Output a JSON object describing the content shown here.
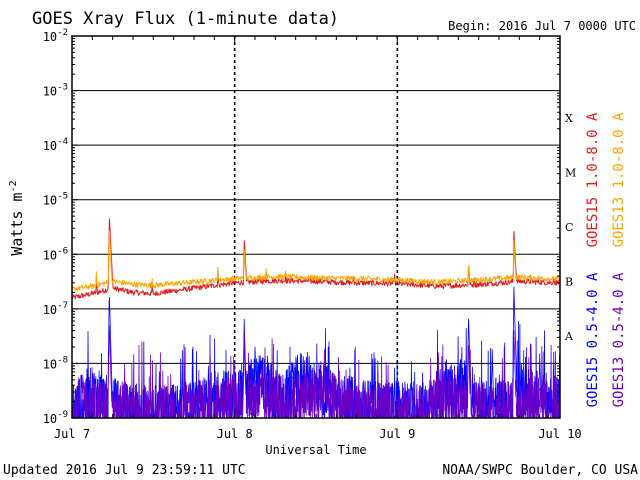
{
  "chart_data": {
    "type": "line",
    "title": "GOES Xray Flux (1-minute data)",
    "begin_text": "Begin:  2016 Jul 7 0000 UTC",
    "xlabel": "Universal Time",
    "ylabel": "Watts m",
    "ylabel_sup": "-2",
    "x_range_hours": [
      0,
      72
    ],
    "x_ticks": [
      {
        "hour": 0,
        "label": "Jul 7"
      },
      {
        "hour": 24,
        "label": "Jul 8"
      },
      {
        "hour": 48,
        "label": "Jul 9"
      },
      {
        "hour": 72,
        "label": "Jul 10"
      }
    ],
    "y_scale": "log",
    "y_range_exp": [
      -9,
      -2
    ],
    "y_ticks": [
      {
        "exp": -2,
        "label": "10",
        "sup": "-2"
      },
      {
        "exp": -3,
        "label": "10",
        "sup": "-3"
      },
      {
        "exp": -4,
        "label": "10",
        "sup": "-4"
      },
      {
        "exp": -5,
        "label": "10",
        "sup": "-5"
      },
      {
        "exp": -6,
        "label": "10",
        "sup": "-6"
      },
      {
        "exp": -7,
        "label": "10",
        "sup": "-7"
      },
      {
        "exp": -8,
        "label": "10",
        "sup": "-8"
      },
      {
        "exp": -9,
        "label": "10",
        "sup": "-9"
      }
    ],
    "flare_classes": [
      {
        "label": "X",
        "exp": -4
      },
      {
        "label": "M",
        "exp": -5
      },
      {
        "label": "C",
        "exp": -6
      },
      {
        "label": "B",
        "exp": -7
      },
      {
        "label": "A",
        "exp": -8
      }
    ],
    "legend": [
      {
        "label": "GOES15 1.0-8.0 A",
        "color": "#e41a1c"
      },
      {
        "label": "GOES13 1.0-8.0 A",
        "color": "#ffa500"
      },
      {
        "label": "GOES15 0.5-4.0 A",
        "color": "#0000ff"
      },
      {
        "label": "GOES13 0.5-4.0 A",
        "color": "#6a00c8"
      }
    ],
    "series": [
      {
        "name": "GOES15 1.0-8.0 A",
        "color": "#e41a1c",
        "baseline": [
          [
            0,
            1.6e-07
          ],
          [
            3,
            1.9e-07
          ],
          [
            6,
            2.4e-07
          ],
          [
            9,
            2e-07
          ],
          [
            12,
            1.9e-07
          ],
          [
            18,
            2.4e-07
          ],
          [
            24,
            3e-07
          ],
          [
            30,
            3.3e-07
          ],
          [
            36,
            3.2e-07
          ],
          [
            42,
            3e-07
          ],
          [
            48,
            2.9e-07
          ],
          [
            54,
            2.6e-07
          ],
          [
            60,
            2.8e-07
          ],
          [
            66,
            3.2e-07
          ],
          [
            72,
            3e-07
          ]
        ],
        "flares": [
          [
            3.6,
            4.2e-07
          ],
          [
            5.5,
            5e-06
          ],
          [
            11.8,
            3.8e-07
          ],
          [
            21.5,
            5.5e-07
          ],
          [
            25.4,
            2.2e-06
          ],
          [
            28.6,
            6e-07
          ],
          [
            31.5,
            5e-07
          ],
          [
            41.5,
            4.4e-07
          ],
          [
            47.6,
            4.3e-07
          ],
          [
            58.5,
            8e-07
          ],
          [
            59.3,
            5e-07
          ],
          [
            65.2,
            2.6e-06
          ],
          [
            71.0,
            4.5e-07
          ]
        ]
      },
      {
        "name": "GOES13 1.0-8.0 A",
        "color": "#ffa500",
        "baseline": [
          [
            0,
            2.3e-07
          ],
          [
            3,
            2.6e-07
          ],
          [
            6,
            3.2e-07
          ],
          [
            9,
            2.8e-07
          ],
          [
            12,
            2.7e-07
          ],
          [
            18,
            3.1e-07
          ],
          [
            24,
            3.6e-07
          ],
          [
            30,
            3.9e-07
          ],
          [
            36,
            3.7e-07
          ],
          [
            42,
            3.6e-07
          ],
          [
            48,
            3.4e-07
          ],
          [
            54,
            3.1e-07
          ],
          [
            60,
            3.4e-07
          ],
          [
            66,
            3.8e-07
          ],
          [
            72,
            3.5e-07
          ]
        ],
        "flares": [
          [
            3.6,
            4.8e-07
          ],
          [
            5.5,
            3e-06
          ],
          [
            11.8,
            4.5e-07
          ],
          [
            21.5,
            6.5e-07
          ],
          [
            25.4,
            1.5e-06
          ],
          [
            28.6,
            6.8e-07
          ],
          [
            31.5,
            5.5e-07
          ],
          [
            58.5,
            8.5e-07
          ],
          [
            65.2,
            1.8e-06
          ]
        ]
      },
      {
        "name": "GOES15 0.5-4.0 A",
        "color": "#0000ff",
        "baseline": [
          [
            0,
            1.5e-09
          ],
          [
            2,
            2.5e-09
          ],
          [
            4,
            3e-09
          ],
          [
            5,
            2e-09
          ],
          [
            8,
            1.5e-09
          ],
          [
            12,
            1.3e-09
          ],
          [
            16,
            1.4e-09
          ],
          [
            19,
            1.7e-09
          ],
          [
            21,
            2.5e-09
          ],
          [
            24,
            2.5e-09
          ],
          [
            26,
            4e-09
          ],
          [
            28,
            5e-09
          ],
          [
            31,
            2e-09
          ],
          [
            34,
            6e-09
          ],
          [
            37,
            3.5e-09
          ],
          [
            40,
            2e-09
          ],
          [
            44,
            1.6e-09
          ],
          [
            48,
            1.6e-09
          ],
          [
            52,
            1.5e-09
          ],
          [
            55,
            3e-09
          ],
          [
            58,
            4e-09
          ],
          [
            60,
            1.5e-09
          ],
          [
            63,
            2e-09
          ],
          [
            64.5,
            1.5e-09
          ],
          [
            66,
            4e-09
          ],
          [
            68,
            2.5e-09
          ],
          [
            72,
            2e-09
          ]
        ],
        "flares": [
          [
            5.5,
            2e-07
          ],
          [
            25.4,
            6.5e-08
          ],
          [
            27,
            2e-08
          ],
          [
            58.5,
            8e-08
          ],
          [
            62,
            1.8e-08
          ],
          [
            65.2,
            2.5e-07
          ],
          [
            69,
            1.5e-08
          ]
        ]
      },
      {
        "name": "GOES13 0.5-4.0 A",
        "color": "#6a00c8",
        "baseline": [
          [
            0,
            1.3e-09
          ],
          [
            3,
            2e-09
          ],
          [
            6,
            1.6e-09
          ],
          [
            10,
            1.4e-09
          ],
          [
            14,
            1.3e-09
          ],
          [
            18,
            1.5e-09
          ],
          [
            22,
            1.9e-09
          ],
          [
            24,
            2e-09
          ],
          [
            28,
            2.5e-09
          ],
          [
            32,
            1.8e-09
          ],
          [
            36,
            3e-09
          ],
          [
            40,
            1.8e-09
          ],
          [
            44,
            1.5e-09
          ],
          [
            48,
            1.4e-09
          ],
          [
            52,
            1.3e-09
          ],
          [
            56,
            2.5e-09
          ],
          [
            60,
            1.4e-09
          ],
          [
            64,
            1.6e-09
          ],
          [
            68,
            2e-09
          ],
          [
            72,
            1.8e-09
          ]
        ],
        "flares": [
          [
            5.5,
            6e-08
          ],
          [
            25.4,
            3e-08
          ],
          [
            58.5,
            2.5e-08
          ],
          [
            65.2,
            4e-08
          ]
        ]
      }
    ]
  },
  "footer": {
    "updated": "Updated 2016 Jul  9 23:59:11 UTC",
    "source": "NOAA/SWPC Boulder, CO USA"
  }
}
